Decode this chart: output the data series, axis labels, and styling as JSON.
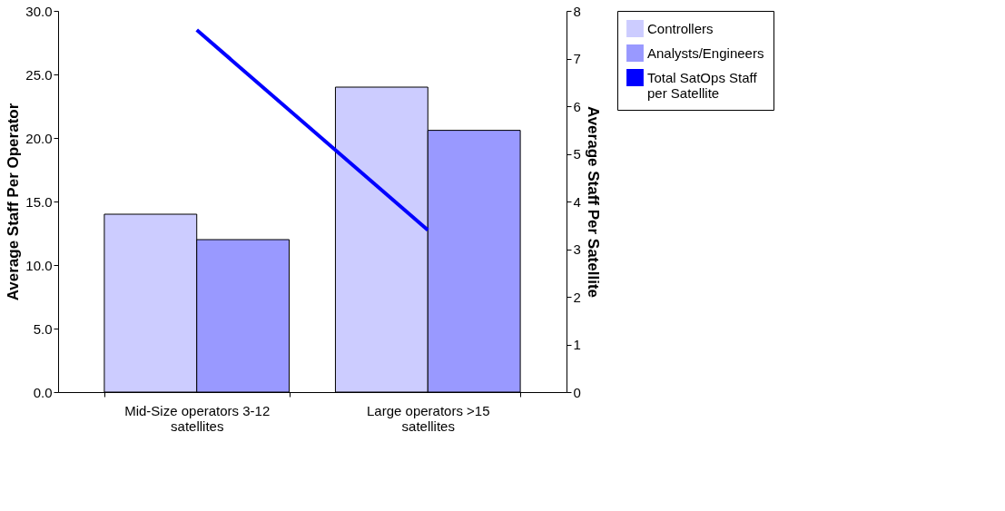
{
  "chart_data": {
    "type": "bar",
    "categories": [
      "Mid-Size operators 3-12 satellites",
      "Large operators >15 satellites"
    ],
    "ylabel": "Average Staff Per Operator",
    "y2label": "Average Staff Per Satellite",
    "ylim": [
      0,
      30
    ],
    "yticks": [
      {
        "value": 0,
        "label": "0.0"
      },
      {
        "value": 5,
        "label": "5.0"
      },
      {
        "value": 10,
        "label": "10.0"
      },
      {
        "value": 15,
        "label": "15.0"
      },
      {
        "value": 20,
        "label": "20.0"
      },
      {
        "value": 25,
        "label": "25.0"
      },
      {
        "value": 30,
        "label": "30.0"
      }
    ],
    "y2lim": [
      0,
      8
    ],
    "y2ticks": [
      0,
      1,
      2,
      3,
      4,
      5,
      6,
      7,
      8
    ],
    "series": [
      {
        "name": "Controllers",
        "color": "#ccccff",
        "values": [
          14.0,
          24.0
        ]
      },
      {
        "name": "Analysts/Engineers",
        "color": "#9999ff",
        "values": [
          12.0,
          20.6
        ]
      },
      {
        "name": "Total SatOps Staff per Satellite",
        "type": "line",
        "axis": "y2",
        "color": "#0000ff",
        "values": [
          7.6,
          3.4
        ]
      }
    ],
    "grid": false,
    "legend": "right"
  }
}
